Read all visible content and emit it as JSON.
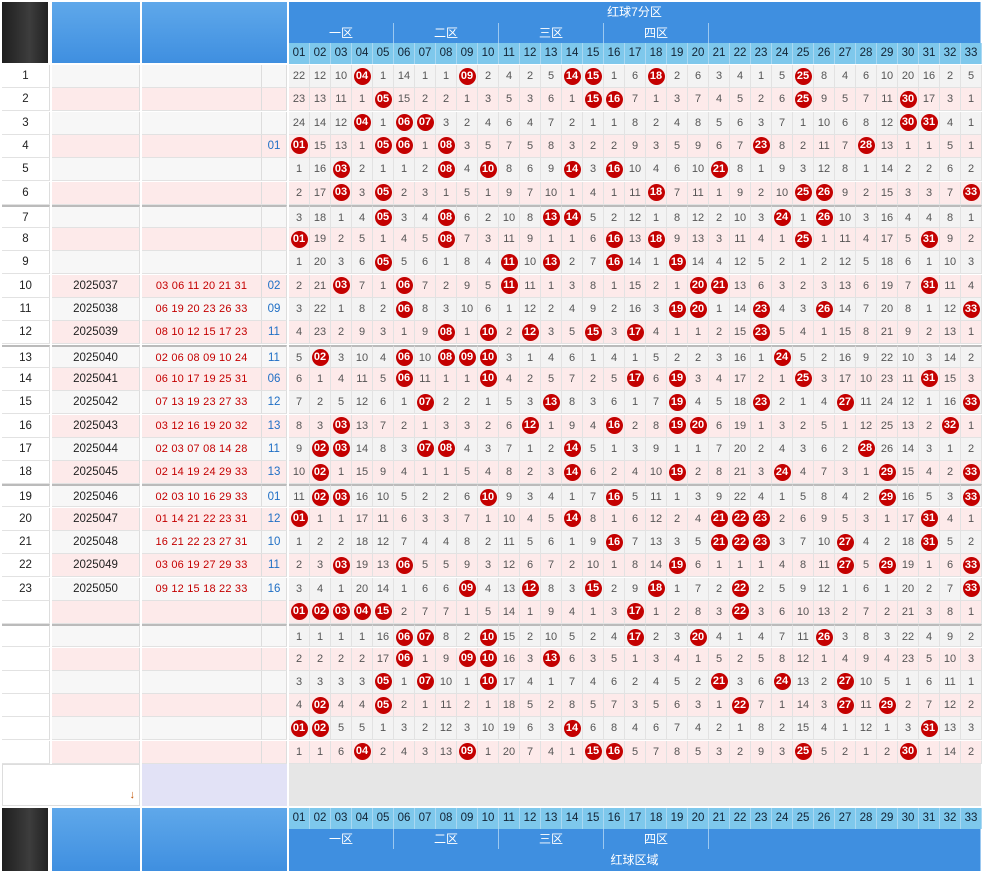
{
  "header": {
    "top_title": "红球7分区",
    "bottom_title": "红球区域",
    "zones": [
      "一区",
      "二区",
      "三区",
      "四区"
    ]
  },
  "columns": [
    "01",
    "02",
    "03",
    "04",
    "05",
    "06",
    "07",
    "08",
    "09",
    "10",
    "11",
    "12",
    "13",
    "14",
    "15",
    "16",
    "17",
    "18",
    "19",
    "20",
    "21",
    "22",
    "23",
    "24",
    "25",
    "26",
    "27",
    "28",
    "29",
    "30",
    "31",
    "32",
    "33"
  ],
  "colors": {
    "ball": "#c40000",
    "header_blue": "#3f8fe0",
    "number_header": "#7ec8ec",
    "row_pink": "#fdeaea",
    "blue_ball_text": "#1f6fc5",
    "red_ball_text": "#c40000"
  },
  "rows": [
    {
      "no": "1",
      "issue": "",
      "reds": "",
      "blue": "",
      "cells": [
        22,
        12,
        10,
        "04",
        1,
        14,
        1,
        1,
        "09",
        2,
        4,
        2,
        5,
        "14",
        "15",
        1,
        6,
        "18",
        2,
        6,
        3,
        4,
        1,
        5,
        "25",
        8,
        4,
        6,
        10,
        20,
        16,
        2,
        5
      ]
    },
    {
      "no": "2",
      "issue": "",
      "reds": "",
      "blue": "",
      "cells": [
        23,
        13,
        11,
        1,
        "05",
        15,
        2,
        2,
        1,
        3,
        5,
        3,
        6,
        1,
        "15",
        "16",
        7,
        1,
        3,
        7,
        4,
        5,
        2,
        6,
        "25",
        9,
        5,
        7,
        11,
        "30",
        17,
        3,
        1
      ]
    },
    {
      "no": "3",
      "issue": "",
      "reds": "",
      "blue": "",
      "cells": [
        24,
        14,
        12,
        "04",
        1,
        "06",
        "07",
        3,
        2,
        4,
        6,
        4,
        7,
        2,
        1,
        1,
        8,
        2,
        4,
        8,
        5,
        6,
        3,
        7,
        1,
        10,
        6,
        8,
        12,
        "30",
        "31",
        4,
        1
      ]
    },
    {
      "no": "4",
      "issue": "",
      "reds": "",
      "blue": "01",
      "cells": [
        "01",
        15,
        13,
        1,
        "05",
        "06",
        1,
        "08",
        3,
        5,
        7,
        5,
        8,
        3,
        2,
        2,
        9,
        3,
        5,
        9,
        6,
        7,
        "23",
        8,
        2,
        11,
        7,
        "28",
        13,
        1,
        1,
        5,
        1
      ]
    },
    {
      "no": "5",
      "issue": "",
      "reds": "",
      "blue": "",
      "cells": [
        1,
        16,
        "03",
        2,
        1,
        1,
        2,
        "08",
        4,
        "10",
        8,
        6,
        9,
        "14",
        3,
        "16",
        10,
        4,
        6,
        10,
        "21",
        8,
        1,
        9,
        3,
        12,
        8,
        1,
        14,
        2,
        2,
        6,
        2
      ]
    },
    {
      "no": "6",
      "issue": "",
      "reds": "",
      "blue": "",
      "cells": [
        2,
        17,
        "03",
        3,
        "05",
        2,
        3,
        1,
        5,
        1,
        9,
        7,
        10,
        1,
        4,
        1,
        11,
        "18",
        7,
        11,
        1,
        9,
        2,
        10,
        "25",
        "26",
        9,
        2,
        15,
        3,
        3,
        7,
        "33"
      ]
    },
    {
      "no": "7",
      "issue": "",
      "reds": "",
      "blue": "",
      "cells": [
        3,
        18,
        1,
        4,
        "05",
        3,
        4,
        "08",
        6,
        2,
        10,
        8,
        "13",
        "14",
        5,
        2,
        12,
        1,
        8,
        12,
        2,
        10,
        3,
        "24",
        1,
        "26",
        10,
        3,
        16,
        4,
        4,
        8,
        1
      ]
    },
    {
      "no": "8",
      "issue": "",
      "reds": "",
      "blue": "",
      "cells": [
        "01",
        19,
        2,
        5,
        1,
        4,
        5,
        "08",
        7,
        3,
        11,
        9,
        1,
        1,
        6,
        "16",
        13,
        "18",
        9,
        13,
        3,
        11,
        4,
        1,
        "25",
        1,
        11,
        4,
        17,
        5,
        "31",
        9,
        2
      ]
    },
    {
      "no": "9",
      "issue": "",
      "reds": "",
      "blue": "",
      "cells": [
        1,
        20,
        3,
        6,
        "05",
        5,
        6,
        1,
        8,
        4,
        "11",
        10,
        "13",
        2,
        7,
        "16",
        14,
        1,
        "19",
        14,
        4,
        12,
        5,
        2,
        1,
        2,
        12,
        5,
        18,
        6,
        1,
        10,
        3
      ]
    },
    {
      "no": "10",
      "issue": "2025037",
      "reds": "03 06 11 20 21 31",
      "blue": "02",
      "cells": [
        2,
        21,
        "03",
        7,
        1,
        "06",
        7,
        2,
        9,
        5,
        "11",
        11,
        1,
        3,
        8,
        1,
        15,
        2,
        1,
        "20",
        "21",
        13,
        6,
        3,
        2,
        3,
        13,
        6,
        19,
        7,
        "31",
        11,
        4
      ]
    },
    {
      "no": "11",
      "issue": "2025038",
      "reds": "06 19 20 23 26 33",
      "blue": "09",
      "cells": [
        3,
        22,
        1,
        8,
        2,
        "06",
        8,
        3,
        10,
        6,
        1,
        12,
        2,
        4,
        9,
        2,
        16,
        3,
        "19",
        "20",
        1,
        14,
        "23",
        4,
        3,
        "26",
        14,
        7,
        20,
        8,
        1,
        12,
        "33"
      ]
    },
    {
      "no": "12",
      "issue": "2025039",
      "reds": "08 10 12 15 17 23",
      "blue": "11",
      "cells": [
        4,
        23,
        2,
        9,
        3,
        1,
        9,
        "08",
        1,
        "10",
        2,
        "12",
        3,
        5,
        "15",
        3,
        "17",
        4,
        1,
        1,
        2,
        15,
        "23",
        5,
        4,
        1,
        15,
        8,
        21,
        9,
        2,
        13,
        1
      ]
    },
    {
      "no": "13",
      "issue": "2025040",
      "reds": "02 06 08 09 10 24",
      "blue": "11",
      "cells": [
        5,
        "02",
        3,
        10,
        4,
        "06",
        10,
        "08",
        "09",
        "10",
        3,
        1,
        4,
        6,
        1,
        4,
        1,
        5,
        2,
        2,
        3,
        16,
        1,
        "24",
        5,
        2,
        16,
        9,
        22,
        10,
        3,
        14,
        2
      ]
    },
    {
      "no": "14",
      "issue": "2025041",
      "reds": "06 10 17 19 25 31",
      "blue": "06",
      "cells": [
        6,
        1,
        4,
        11,
        5,
        "06",
        11,
        1,
        1,
        "10",
        4,
        2,
        5,
        7,
        2,
        5,
        "17",
        6,
        "19",
        3,
        4,
        17,
        2,
        1,
        "25",
        3,
        17,
        10,
        23,
        11,
        "31",
        15,
        3
      ]
    },
    {
      "no": "15",
      "issue": "2025042",
      "reds": "07 13 19 23 27 33",
      "blue": "12",
      "cells": [
        7,
        2,
        5,
        12,
        6,
        1,
        "07",
        2,
        2,
        1,
        5,
        3,
        "13",
        8,
        3,
        6,
        1,
        7,
        "19",
        4,
        5,
        18,
        "23",
        2,
        1,
        4,
        "27",
        11,
        24,
        12,
        1,
        16,
        "33"
      ]
    },
    {
      "no": "16",
      "issue": "2025043",
      "reds": "03 12 16 19 20 32",
      "blue": "13",
      "cells": [
        8,
        3,
        "03",
        13,
        7,
        2,
        1,
        3,
        3,
        2,
        6,
        "12",
        1,
        9,
        4,
        "16",
        2,
        8,
        "19",
        "20",
        6,
        19,
        1,
        3,
        2,
        5,
        1,
        12,
        25,
        13,
        2,
        "32",
        1
      ]
    },
    {
      "no": "17",
      "issue": "2025044",
      "reds": "02 03 07 08 14 28",
      "blue": "11",
      "cells": [
        9,
        "02",
        "03",
        14,
        8,
        3,
        "07",
        "08",
        4,
        3,
        7,
        1,
        2,
        "14",
        5,
        1,
        3,
        9,
        1,
        1,
        7,
        20,
        2,
        4,
        3,
        6,
        2,
        "28",
        26,
        14,
        3,
        1,
        2
      ]
    },
    {
      "no": "18",
      "issue": "2025045",
      "reds": "02 14 19 24 29 33",
      "blue": "13",
      "cells": [
        10,
        "02",
        1,
        15,
        9,
        4,
        1,
        1,
        5,
        4,
        8,
        2,
        3,
        "14",
        6,
        2,
        4,
        10,
        "19",
        2,
        8,
        21,
        3,
        "24",
        4,
        7,
        3,
        1,
        "29",
        15,
        4,
        2,
        "33"
      ]
    },
    {
      "no": "19",
      "issue": "2025046",
      "reds": "02 03 10 16 29 33",
      "blue": "01",
      "cells": [
        11,
        "02",
        "03",
        16,
        10,
        5,
        2,
        2,
        6,
        "10",
        9,
        3,
        4,
        1,
        7,
        "16",
        5,
        11,
        1,
        3,
        9,
        22,
        4,
        1,
        5,
        8,
        4,
        2,
        "29",
        16,
        5,
        3,
        "33"
      ]
    },
    {
      "no": "20",
      "issue": "2025047",
      "reds": "01 14 21 22 23 31",
      "blue": "12",
      "cells": [
        "01",
        1,
        1,
        17,
        11,
        6,
        3,
        3,
        7,
        1,
        10,
        4,
        5,
        "14",
        8,
        1,
        6,
        12,
        2,
        4,
        "21",
        "22",
        "23",
        2,
        6,
        9,
        5,
        3,
        1,
        17,
        "31",
        4,
        1
      ]
    },
    {
      "no": "21",
      "issue": "2025048",
      "reds": "16 21 22 23 27 31",
      "blue": "10",
      "cells": [
        1,
        2,
        2,
        18,
        12,
        7,
        4,
        4,
        8,
        2,
        11,
        5,
        6,
        1,
        9,
        "16",
        7,
        13,
        3,
        5,
        "21",
        "22",
        "23",
        3,
        7,
        10,
        "27",
        4,
        2,
        18,
        "31",
        5,
        2
      ]
    },
    {
      "no": "22",
      "issue": "2025049",
      "reds": "03 06 19 27 29 33",
      "blue": "11",
      "cells": [
        2,
        3,
        "03",
        19,
        13,
        "06",
        5,
        5,
        9,
        3,
        12,
        6,
        7,
        2,
        10,
        1,
        8,
        14,
        "19",
        6,
        1,
        1,
        1,
        4,
        8,
        11,
        "27",
        5,
        "29",
        19,
        1,
        6,
        "33"
      ]
    },
    {
      "no": "23",
      "issue": "2025050",
      "reds": "09 12 15 18 22 33",
      "blue": "16",
      "cells": [
        3,
        4,
        1,
        20,
        14,
        1,
        6,
        6,
        "09",
        4,
        13,
        "12",
        8,
        3,
        "15",
        2,
        9,
        "18",
        1,
        7,
        2,
        "22",
        2,
        5,
        9,
        12,
        1,
        6,
        1,
        20,
        2,
        7,
        "33"
      ]
    },
    {
      "no": "",
      "issue": "",
      "reds": "",
      "blue": "",
      "cells": [
        "01",
        "02",
        "03",
        "04",
        "15",
        2,
        7,
        7,
        1,
        5,
        14,
        1,
        9,
        4,
        1,
        3,
        "17",
        1,
        2,
        8,
        3,
        "22",
        3,
        6,
        10,
        13,
        2,
        7,
        2,
        21,
        3,
        8,
        1
      ]
    },
    {
      "no": "",
      "issue": "",
      "reds": "",
      "blue": "",
      "cells": [
        1,
        1,
        1,
        1,
        16,
        "06",
        "07",
        8,
        2,
        "10",
        15,
        2,
        10,
        5,
        2,
        4,
        "17",
        2,
        3,
        "20",
        4,
        1,
        4,
        7,
        11,
        "26",
        3,
        8,
        3,
        22,
        4,
        9,
        2
      ]
    },
    {
      "no": "",
      "issue": "",
      "reds": "",
      "blue": "",
      "cells": [
        2,
        2,
        2,
        2,
        17,
        "06",
        1,
        9,
        "09",
        "10",
        16,
        3,
        "13",
        6,
        3,
        5,
        1,
        3,
        4,
        1,
        5,
        2,
        5,
        8,
        12,
        1,
        4,
        9,
        4,
        23,
        5,
        10,
        3
      ]
    },
    {
      "no": "",
      "issue": "",
      "reds": "",
      "blue": "",
      "cells": [
        3,
        3,
        3,
        3,
        "05",
        1,
        "07",
        10,
        1,
        "10",
        17,
        4,
        1,
        7,
        4,
        6,
        2,
        4,
        5,
        2,
        "21",
        3,
        6,
        "24",
        13,
        2,
        "27",
        10,
        5,
        1,
        6,
        11,
        1
      ]
    },
    {
      "no": "",
      "issue": "",
      "reds": "",
      "blue": "",
      "cells": [
        4,
        "02",
        4,
        4,
        "05",
        2,
        1,
        11,
        2,
        1,
        18,
        5,
        2,
        8,
        5,
        7,
        3,
        5,
        6,
        3,
        1,
        "22",
        7,
        1,
        14,
        3,
        "27",
        11,
        "29",
        2,
        7,
        12,
        2
      ]
    },
    {
      "no": "",
      "issue": "",
      "reds": "",
      "blue": "",
      "cells": [
        "01",
        "02",
        5,
        5,
        1,
        3,
        2,
        12,
        3,
        10,
        19,
        6,
        3,
        "14",
        6,
        8,
        4,
        6,
        7,
        4,
        2,
        1,
        8,
        2,
        15,
        4,
        1,
        12,
        1,
        3,
        "31",
        13,
        3
      ]
    },
    {
      "no": "",
      "issue": "",
      "reds": "",
      "blue": "",
      "cells": [
        1,
        1,
        6,
        "04",
        2,
        4,
        3,
        13,
        "09",
        1,
        20,
        7,
        4,
        1,
        "15",
        "16",
        5,
        7,
        8,
        5,
        3,
        2,
        9,
        3,
        "25",
        5,
        2,
        1,
        2,
        "30",
        1,
        14,
        2
      ]
    }
  ]
}
